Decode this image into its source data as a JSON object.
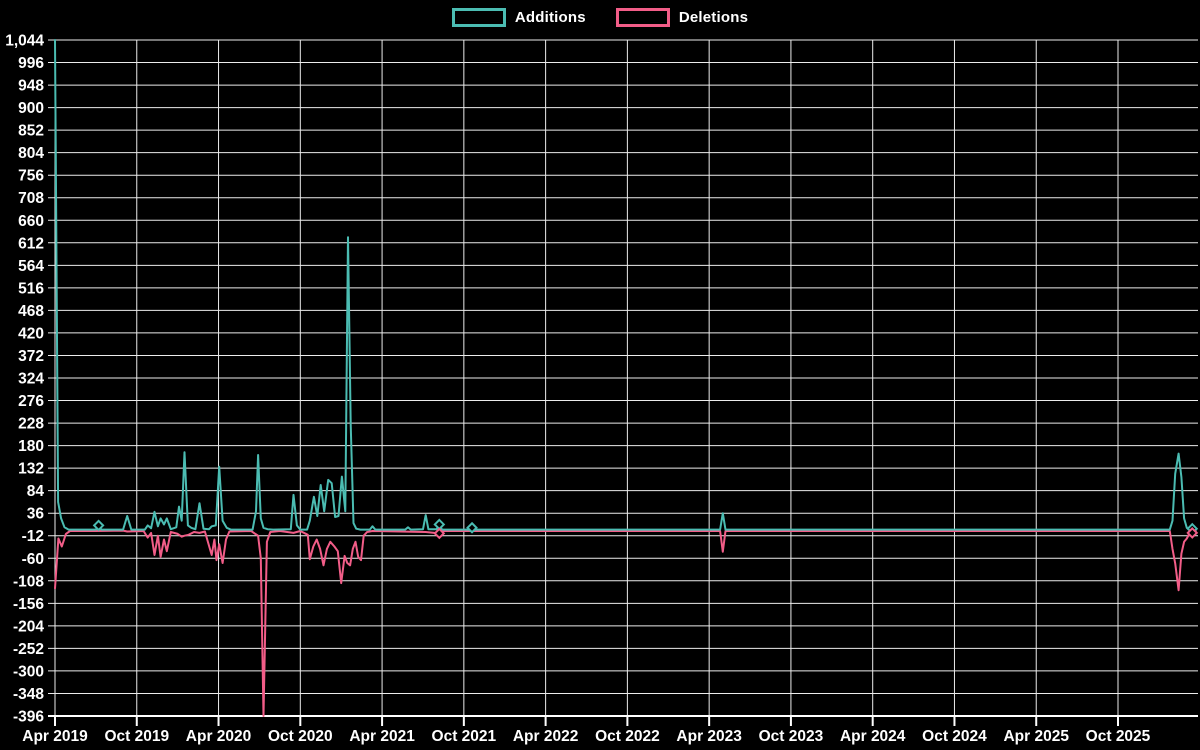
{
  "page": {
    "background": "#000000",
    "text_color": "#ffffff",
    "grid_color": "#ececec"
  },
  "legend": {
    "items": [
      {
        "label": "Additions",
        "color": "#4bbcb2"
      },
      {
        "label": "Deletions",
        "color": "#f25d88"
      }
    ]
  },
  "chart_data": {
    "type": "line",
    "title": "",
    "xlabel": "",
    "ylabel": "",
    "grid": true,
    "legend_position": "top-center",
    "x_unit": "months since Apr 2019",
    "x_axis": {
      "ticks": [
        {
          "month": 0,
          "label": "Apr 2019"
        },
        {
          "month": 6,
          "label": "Oct 2019"
        },
        {
          "month": 12,
          "label": "Apr 2020"
        },
        {
          "month": 18,
          "label": "Oct 2020"
        },
        {
          "month": 24,
          "label": "Apr 2021"
        },
        {
          "month": 30,
          "label": "Oct 2021"
        },
        {
          "month": 36,
          "label": "Apr 2022"
        },
        {
          "month": 42,
          "label": "Oct 2022"
        },
        {
          "month": 48,
          "label": "Apr 2023"
        },
        {
          "month": 54,
          "label": "Oct 2023"
        },
        {
          "month": 60,
          "label": "Apr 2024"
        },
        {
          "month": 66,
          "label": "Oct 2024"
        },
        {
          "month": 72,
          "label": "Apr 2025"
        },
        {
          "month": 78,
          "label": "Oct 2025"
        }
      ]
    },
    "y_axis": {
      "ylim": [
        -396,
        1044
      ],
      "ticks": [
        {
          "value": 1044,
          "label": "1,044"
        },
        {
          "value": 996,
          "label": "996"
        },
        {
          "value": 948,
          "label": "948"
        },
        {
          "value": 900,
          "label": "900"
        },
        {
          "value": 852,
          "label": "852"
        },
        {
          "value": 804,
          "label": "804"
        },
        {
          "value": 756,
          "label": "756"
        },
        {
          "value": 708,
          "label": "708"
        },
        {
          "value": 660,
          "label": "660"
        },
        {
          "value": 612,
          "label": "612"
        },
        {
          "value": 564,
          "label": "564"
        },
        {
          "value": 516,
          "label": "516"
        },
        {
          "value": 468,
          "label": "468"
        },
        {
          "value": 420,
          "label": "420"
        },
        {
          "value": 372,
          "label": "372"
        },
        {
          "value": 324,
          "label": "324"
        },
        {
          "value": 276,
          "label": "276"
        },
        {
          "value": 228,
          "label": "228"
        },
        {
          "value": 180,
          "label": "180"
        },
        {
          "value": 132,
          "label": "132"
        },
        {
          "value": 84,
          "label": "84"
        },
        {
          "value": 36,
          "label": "36"
        },
        {
          "value": -12,
          "label": "-12"
        },
        {
          "value": -60,
          "label": "-60"
        },
        {
          "value": -108,
          "label": "-108"
        },
        {
          "value": -156,
          "label": "-156"
        },
        {
          "value": -204,
          "label": "-204"
        },
        {
          "value": -252,
          "label": "-252"
        },
        {
          "value": -300,
          "label": "-300"
        },
        {
          "value": -348,
          "label": "-348"
        },
        {
          "value": -396,
          "label": "-396"
        }
      ]
    },
    "series": [
      {
        "name": "Additions",
        "color": "#4bbcb2",
        "points": [
          [
            0,
            1044
          ],
          [
            0.23,
            60
          ],
          [
            0.45,
            25
          ],
          [
            0.7,
            6
          ],
          [
            1,
            1
          ],
          [
            3,
            1
          ],
          [
            3.2,
            10
          ],
          [
            3.4,
            1
          ],
          [
            5,
            1
          ],
          [
            5.3,
            30
          ],
          [
            5.6,
            1
          ],
          [
            6.6,
            1
          ],
          [
            6.8,
            10
          ],
          [
            7.05,
            4
          ],
          [
            7.3,
            39
          ],
          [
            7.55,
            8
          ],
          [
            7.75,
            25
          ],
          [
            8,
            12
          ],
          [
            8.2,
            25
          ],
          [
            8.5,
            2
          ],
          [
            8.9,
            6
          ],
          [
            9.1,
            50
          ],
          [
            9.3,
            20
          ],
          [
            9.5,
            166
          ],
          [
            9.75,
            10
          ],
          [
            10,
            5
          ],
          [
            10.3,
            2
          ],
          [
            10.6,
            57
          ],
          [
            10.9,
            3
          ],
          [
            11.3,
            2
          ],
          [
            11.5,
            8
          ],
          [
            11.8,
            10
          ],
          [
            12.05,
            135
          ],
          [
            12.3,
            20
          ],
          [
            12.6,
            5
          ],
          [
            12.9,
            1
          ],
          [
            14.5,
            1
          ],
          [
            14.75,
            40
          ],
          [
            14.9,
            160
          ],
          [
            15.1,
            25
          ],
          [
            15.3,
            5
          ],
          [
            15.6,
            2
          ],
          [
            16,
            1
          ],
          [
            17.3,
            2
          ],
          [
            17.5,
            75
          ],
          [
            17.75,
            10
          ],
          [
            18,
            1
          ],
          [
            18.5,
            1
          ],
          [
            18.7,
            20
          ],
          [
            19,
            71
          ],
          [
            19.25,
            30
          ],
          [
            19.5,
            96
          ],
          [
            19.75,
            40
          ],
          [
            20.05,
            107
          ],
          [
            20.3,
            100
          ],
          [
            20.55,
            28
          ],
          [
            20.8,
            30
          ],
          [
            21.05,
            114
          ],
          [
            21.3,
            40
          ],
          [
            21.5,
            624
          ],
          [
            21.7,
            225
          ],
          [
            21.9,
            15
          ],
          [
            22.1,
            3
          ],
          [
            22.4,
            1
          ],
          [
            23.1,
            1
          ],
          [
            23.3,
            8
          ],
          [
            23.5,
            1
          ],
          [
            25.7,
            1
          ],
          [
            25.9,
            6
          ],
          [
            26.1,
            1
          ],
          [
            27,
            2
          ],
          [
            27.2,
            32
          ],
          [
            27.4,
            2
          ],
          [
            28,
            2
          ],
          [
            28.2,
            12
          ],
          [
            28.4,
            1
          ],
          [
            30.4,
            1
          ],
          [
            30.6,
            5
          ],
          [
            30.8,
            1
          ],
          [
            48.8,
            1
          ],
          [
            49,
            36
          ],
          [
            49.2,
            1
          ],
          [
            81.8,
            1
          ],
          [
            82,
            20
          ],
          [
            82.2,
            120
          ],
          [
            82.45,
            163
          ],
          [
            82.65,
            113
          ],
          [
            82.85,
            25
          ],
          [
            83.05,
            5
          ],
          [
            83.25,
            1
          ],
          [
            83.45,
            3
          ],
          [
            83.7,
            1
          ]
        ]
      },
      {
        "name": "Deletions",
        "color": "#f25d88",
        "points": [
          [
            0,
            -124
          ],
          [
            0.25,
            -18
          ],
          [
            0.5,
            -35
          ],
          [
            0.8,
            -8
          ],
          [
            1.1,
            -2
          ],
          [
            3,
            -2
          ],
          [
            5,
            -1
          ],
          [
            5.3,
            -3
          ],
          [
            6.5,
            -2
          ],
          [
            6.8,
            -16
          ],
          [
            7.05,
            -6
          ],
          [
            7.3,
            -53
          ],
          [
            7.55,
            -12
          ],
          [
            7.75,
            -57
          ],
          [
            8,
            -20
          ],
          [
            8.2,
            -45
          ],
          [
            8.5,
            -4
          ],
          [
            9,
            -8
          ],
          [
            9.3,
            -14
          ],
          [
            9.5,
            -12
          ],
          [
            9.8,
            -10
          ],
          [
            10.2,
            -4
          ],
          [
            10.6,
            -6
          ],
          [
            11,
            -3
          ],
          [
            11.5,
            -53
          ],
          [
            11.7,
            -20
          ],
          [
            11.85,
            -64
          ],
          [
            12.05,
            -30
          ],
          [
            12.3,
            -70
          ],
          [
            12.55,
            -20
          ],
          [
            12.8,
            -3
          ],
          [
            14.4,
            -2
          ],
          [
            14.7,
            -8
          ],
          [
            14.9,
            -12
          ],
          [
            15.1,
            -60
          ],
          [
            15.3,
            -396
          ],
          [
            15.55,
            -25
          ],
          [
            15.8,
            -4
          ],
          [
            16.5,
            -2
          ],
          [
            17.5,
            -6
          ],
          [
            18,
            -2
          ],
          [
            18.55,
            -10
          ],
          [
            18.7,
            -62
          ],
          [
            18.95,
            -35
          ],
          [
            19.2,
            -20
          ],
          [
            19.45,
            -40
          ],
          [
            19.7,
            -75
          ],
          [
            19.95,
            -40
          ],
          [
            20.2,
            -25
          ],
          [
            20.5,
            -35
          ],
          [
            20.75,
            -45
          ],
          [
            21,
            -113
          ],
          [
            21.25,
            -55
          ],
          [
            21.45,
            -70
          ],
          [
            21.65,
            -75
          ],
          [
            21.85,
            -40
          ],
          [
            22.05,
            -25
          ],
          [
            22.25,
            -57
          ],
          [
            22.45,
            -64
          ],
          [
            22.65,
            -12
          ],
          [
            22.9,
            -4
          ],
          [
            23.3,
            -2
          ],
          [
            27.2,
            -4
          ],
          [
            28.2,
            -7
          ],
          [
            28.4,
            -2
          ],
          [
            48.8,
            -2
          ],
          [
            49,
            -46
          ],
          [
            49.2,
            -2
          ],
          [
            81.8,
            -2
          ],
          [
            82,
            -40
          ],
          [
            82.2,
            -71
          ],
          [
            82.45,
            -128
          ],
          [
            82.65,
            -50
          ],
          [
            82.85,
            -25
          ],
          [
            83.05,
            -18
          ],
          [
            83.3,
            -4
          ],
          [
            83.45,
            -6
          ],
          [
            83.7,
            -2
          ]
        ]
      }
    ],
    "markers": [
      {
        "series": 0,
        "month": 3.2,
        "value": 10
      },
      {
        "series": 0,
        "month": 28.2,
        "value": 12
      },
      {
        "series": 1,
        "month": 28.2,
        "value": -7
      },
      {
        "series": 0,
        "month": 30.6,
        "value": 5
      },
      {
        "series": 0,
        "month": 83.45,
        "value": 3
      },
      {
        "series": 1,
        "month": 83.45,
        "value": -6
      }
    ]
  }
}
